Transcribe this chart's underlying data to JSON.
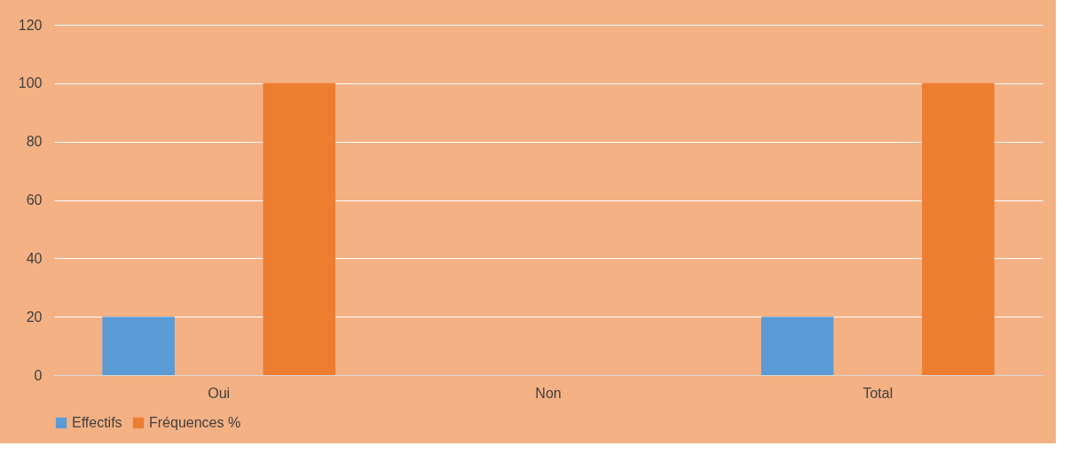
{
  "chart_data": {
    "type": "bar",
    "categories": [
      "Oui",
      "Non",
      "Total"
    ],
    "series": [
      {
        "name": "Effectifs",
        "color": "#5b9bd5",
        "values": [
          20,
          0,
          20
        ]
      },
      {
        "name": "Fréquences %",
        "color": "#ed7d31",
        "values": [
          100,
          0,
          100
        ]
      }
    ],
    "ylim": [
      0,
      120
    ],
    "yticks": [
      0,
      20,
      40,
      60,
      80,
      100,
      120
    ],
    "grid": "y",
    "legend": "bottom"
  }
}
